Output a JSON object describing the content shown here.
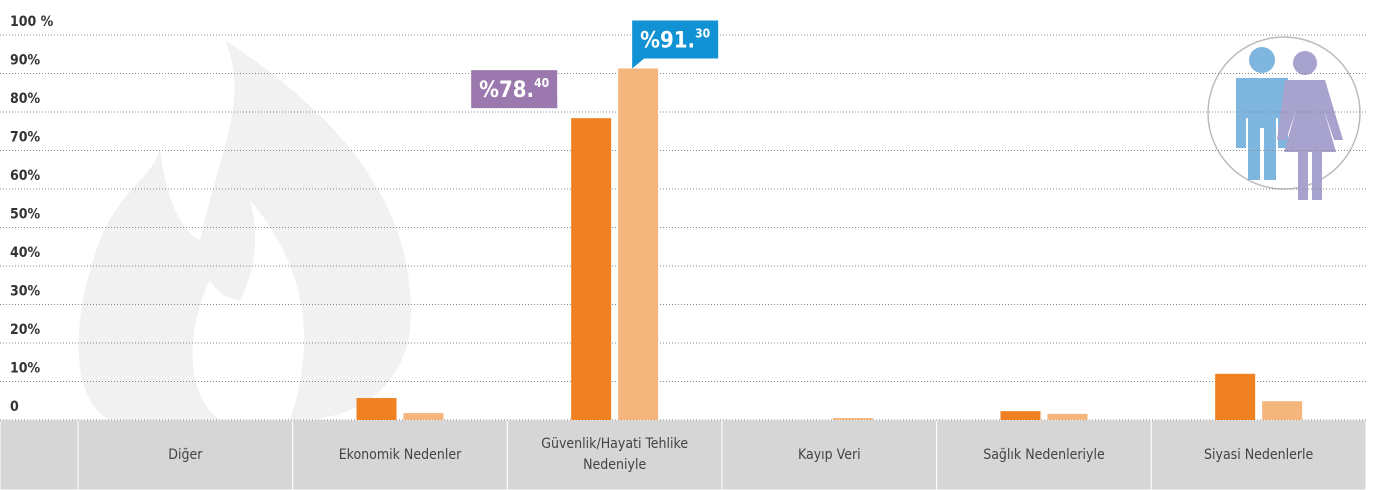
{
  "chart_data": {
    "type": "bar",
    "categories": [
      null,
      "Diğer",
      "Ekonomik Nedenler",
      "Güvenlik/Hayati Tehlike Nedeniyle",
      "Kayıp Veri",
      "Sağlık Nedenleriyle",
      "Siyasi Nedenlerle"
    ],
    "series": [
      {
        "color": "#f08122",
        "label_color": "#9b79ae",
        "values": [
          null,
          0,
          5.7,
          78.4,
          0,
          2.3,
          12
        ],
        "value_labels": [
          null,
          null,
          null,
          "%78.40",
          null,
          null,
          null
        ]
      },
      {
        "color": "#f5b67e",
        "label_color": "#1192d5",
        "values": [
          null,
          0,
          1.8,
          91.3,
          0.5,
          1.6,
          4.9
        ],
        "value_labels": [
          null,
          null,
          null,
          "%91.30",
          null,
          null,
          null
        ]
      }
    ],
    "ylim": [
      0,
      100
    ],
    "yticks": [
      0,
      {
        "value": 10,
        "label": "10%"
      },
      {
        "value": 20,
        "label": "20%"
      },
      {
        "value": 30,
        "label": "30%"
      },
      {
        "value": 40,
        "label": "40%"
      },
      {
        "value": 50,
        "label": "50%"
      },
      {
        "value": 60,
        "label": "60%"
      },
      {
        "value": 70,
        "label": "70%"
      },
      {
        "value": 80,
        "label": "80%"
      },
      {
        "value": 90,
        "label": "90%"
      },
      {
        "value": 100,
        "label": "100 %"
      }
    ],
    "grid": true
  }
}
